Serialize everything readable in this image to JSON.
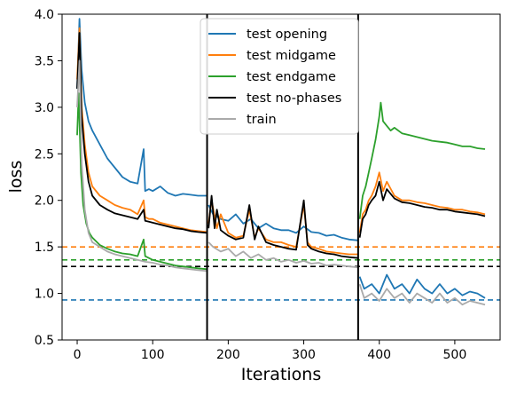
{
  "chart_data": {
    "type": "line",
    "title": "",
    "xlabel": "Iterations",
    "ylabel": "loss",
    "xlim": [
      -20,
      560
    ],
    "ylim": [
      0.5,
      4.0
    ],
    "xticks": [
      0,
      100,
      200,
      300,
      400,
      500
    ],
    "yticks": [
      0.5,
      1.0,
      1.5,
      2.0,
      2.5,
      3.0,
      3.5,
      4.0
    ],
    "xtick_labels": [
      "0",
      "100",
      "200",
      "300",
      "400",
      "500"
    ],
    "ytick_labels": [
      "0.5",
      "1.0",
      "1.5",
      "2.0",
      "2.5",
      "3.0",
      "3.5",
      "4.0"
    ],
    "grid": false,
    "legend_position": "top-center",
    "vertical_lines": [
      {
        "x": 172,
        "color": "#000000"
      },
      {
        "x": 372,
        "color": "#000000"
      }
    ],
    "horizontal_dashed_lines": [
      {
        "y": 1.5,
        "color": "#ff7f0e"
      },
      {
        "y": 1.36,
        "color": "#2ca02c"
      },
      {
        "y": 1.29,
        "color": "#000000"
      },
      {
        "y": 0.93,
        "color": "#1f77b4"
      }
    ],
    "series": [
      {
        "name": "test opening",
        "color": "#1f77b4",
        "segments": [
          {
            "x": [
              0,
              3,
              6,
              10,
              15,
              20,
              30,
              40,
              50,
              60,
              70,
              80,
              88,
              90,
              95,
              100,
              110,
              120,
              130,
              140,
              150,
              160,
              172
            ],
            "y": [
              3.2,
              3.95,
              3.4,
              3.05,
              2.85,
              2.75,
              2.6,
              2.45,
              2.35,
              2.25,
              2.2,
              2.18,
              2.55,
              2.1,
              2.12,
              2.1,
              2.15,
              2.08,
              2.05,
              2.07,
              2.06,
              2.05,
              2.05
            ]
          },
          {
            "x": [
              174,
              180,
              190,
              200,
              210,
              220,
              230,
              240,
              250,
              260,
              270,
              280,
              290,
              300,
              310,
              320,
              330,
              340,
              350,
              360,
              372
            ],
            "y": [
              1.95,
              1.85,
              1.8,
              1.78,
              1.85,
              1.75,
              1.8,
              1.7,
              1.75,
              1.7,
              1.68,
              1.68,
              1.65,
              1.72,
              1.66,
              1.65,
              1.62,
              1.63,
              1.6,
              1.58,
              1.57
            ]
          },
          {
            "x": [
              374,
              380,
              390,
              400,
              410,
              420,
              430,
              440,
              450,
              460,
              470,
              480,
              490,
              500,
              510,
              520,
              530,
              540
            ],
            "y": [
              1.18,
              1.05,
              1.1,
              1.0,
              1.2,
              1.05,
              1.1,
              1.0,
              1.15,
              1.05,
              1.0,
              1.1,
              1.0,
              1.05,
              0.98,
              1.02,
              1.0,
              0.95
            ]
          }
        ]
      },
      {
        "name": "test midgame",
        "color": "#ff7f0e",
        "segments": [
          {
            "x": [
              0,
              3,
              6,
              10,
              15,
              20,
              30,
              40,
              50,
              60,
              70,
              80,
              88,
              90,
              95,
              100,
              110,
              120,
              130,
              140,
              150,
              160,
              172
            ],
            "y": [
              3.3,
              3.85,
              3.0,
              2.6,
              2.3,
              2.15,
              2.05,
              2.0,
              1.95,
              1.92,
              1.9,
              1.85,
              2.0,
              1.82,
              1.8,
              1.8,
              1.76,
              1.74,
              1.72,
              1.7,
              1.68,
              1.67,
              1.66
            ]
          },
          {
            "x": [
              174,
              178,
              185,
              190,
              200,
              210,
              220,
              228,
              235,
              240,
              250,
              260,
              270,
              280,
              290,
              300,
              305,
              310,
              320,
              330,
              340,
              350,
              360,
              372
            ],
            "y": [
              1.75,
              2.0,
              1.7,
              1.85,
              1.65,
              1.6,
              1.62,
              1.9,
              1.6,
              1.7,
              1.58,
              1.55,
              1.55,
              1.52,
              1.5,
              1.95,
              1.55,
              1.5,
              1.48,
              1.45,
              1.44,
              1.43,
              1.42,
              1.42
            ]
          },
          {
            "x": [
              374,
              378,
              382,
              386,
              390,
              395,
              400,
              405,
              410,
              420,
              430,
              440,
              450,
              460,
              470,
              480,
              490,
              500,
              510,
              520,
              530,
              540
            ],
            "y": [
              1.65,
              1.85,
              1.9,
              2.0,
              2.05,
              2.15,
              2.3,
              2.1,
              2.2,
              2.05,
              2.0,
              2.0,
              1.98,
              1.97,
              1.95,
              1.93,
              1.92,
              1.9,
              1.9,
              1.88,
              1.87,
              1.85
            ]
          }
        ]
      },
      {
        "name": "test endgame",
        "color": "#2ca02c",
        "segments": [
          {
            "x": [
              0,
              2,
              5,
              8,
              12,
              16,
              20,
              30,
              40,
              50,
              60,
              70,
              80,
              88,
              90,
              95,
              100,
              110,
              120,
              130,
              140,
              150,
              160,
              172
            ],
            "y": [
              2.7,
              3.15,
              2.3,
              1.95,
              1.75,
              1.65,
              1.6,
              1.52,
              1.48,
              1.45,
              1.43,
              1.42,
              1.4,
              1.58,
              1.4,
              1.38,
              1.36,
              1.34,
              1.32,
              1.3,
              1.29,
              1.28,
              1.27,
              1.26
            ]
          },
          {
            "x": [
              374,
              378,
              382,
              386,
              390,
              395,
              400,
              402,
              405,
              410,
              415,
              420,
              430,
              440,
              450,
              460,
              470,
              480,
              490,
              500,
              510,
              520,
              530,
              540
            ],
            "y": [
              1.8,
              2.05,
              2.15,
              2.3,
              2.45,
              2.65,
              2.9,
              3.05,
              2.85,
              2.8,
              2.75,
              2.78,
              2.72,
              2.7,
              2.68,
              2.66,
              2.64,
              2.63,
              2.62,
              2.6,
              2.58,
              2.58,
              2.56,
              2.55
            ]
          }
        ]
      },
      {
        "name": "test no-phases",
        "color": "#000000",
        "segments": [
          {
            "x": [
              0,
              3,
              6,
              10,
              15,
              20,
              30,
              40,
              50,
              60,
              70,
              80,
              88,
              90,
              95,
              100,
              110,
              120,
              130,
              140,
              150,
              160,
              172
            ],
            "y": [
              3.2,
              3.8,
              2.9,
              2.5,
              2.2,
              2.05,
              1.95,
              1.9,
              1.86,
              1.84,
              1.82,
              1.8,
              1.9,
              1.78,
              1.77,
              1.76,
              1.74,
              1.72,
              1.7,
              1.69,
              1.67,
              1.66,
              1.65
            ]
          },
          {
            "x": [
              174,
              178,
              182,
              185,
              190,
              200,
              210,
              220,
              228,
              235,
              240,
              250,
              260,
              270,
              280,
              290,
              300,
              305,
              310,
              320,
              330,
              340,
              350,
              360,
              372
            ],
            "y": [
              1.7,
              2.05,
              1.7,
              1.9,
              1.68,
              1.62,
              1.58,
              1.6,
              1.95,
              1.58,
              1.72,
              1.55,
              1.52,
              1.5,
              1.48,
              1.47,
              2.0,
              1.52,
              1.48,
              1.45,
              1.43,
              1.42,
              1.4,
              1.39,
              1.38
            ]
          },
          {
            "x": [
              374,
              378,
              382,
              386,
              390,
              395,
              400,
              405,
              410,
              420,
              430,
              440,
              450,
              460,
              470,
              480,
              490,
              500,
              510,
              520,
              530,
              540
            ],
            "y": [
              1.6,
              1.8,
              1.85,
              1.95,
              2.0,
              2.05,
              2.2,
              2.0,
              2.12,
              2.02,
              1.98,
              1.97,
              1.95,
              1.93,
              1.92,
              1.9,
              1.9,
              1.88,
              1.87,
              1.86,
              1.85,
              1.83
            ]
          }
        ]
      },
      {
        "name": "train",
        "color": "#aaaaaa",
        "segments": [
          {
            "x": [
              0,
              3,
              6,
              10,
              15,
              20,
              30,
              40,
              50,
              60,
              70,
              80,
              90,
              100,
              110,
              120,
              130,
              140,
              150,
              160,
              172
            ],
            "y": [
              3.0,
              3.5,
              2.4,
              1.9,
              1.65,
              1.55,
              1.5,
              1.45,
              1.42,
              1.4,
              1.38,
              1.36,
              1.34,
              1.33,
              1.31,
              1.3,
              1.28,
              1.27,
              1.26,
              1.25,
              1.24
            ]
          },
          {
            "x": [
              174,
              180,
              190,
              200,
              210,
              220,
              230,
              240,
              250,
              260,
              270,
              280,
              290,
              300,
              310,
              320,
              330,
              340,
              350,
              360,
              372
            ],
            "y": [
              1.55,
              1.5,
              1.45,
              1.48,
              1.4,
              1.45,
              1.38,
              1.42,
              1.36,
              1.38,
              1.34,
              1.36,
              1.33,
              1.35,
              1.32,
              1.33,
              1.3,
              1.31,
              1.3,
              1.29,
              1.28
            ]
          },
          {
            "x": [
              374,
              380,
              390,
              400,
              410,
              420,
              430,
              440,
              450,
              460,
              470,
              480,
              490,
              500,
              510,
              520,
              530,
              540
            ],
            "y": [
              1.1,
              0.95,
              1.0,
              0.92,
              1.05,
              0.95,
              1.0,
              0.9,
              1.0,
              0.95,
              0.9,
              1.0,
              0.9,
              0.95,
              0.88,
              0.92,
              0.9,
              0.88
            ]
          }
        ]
      }
    ]
  }
}
